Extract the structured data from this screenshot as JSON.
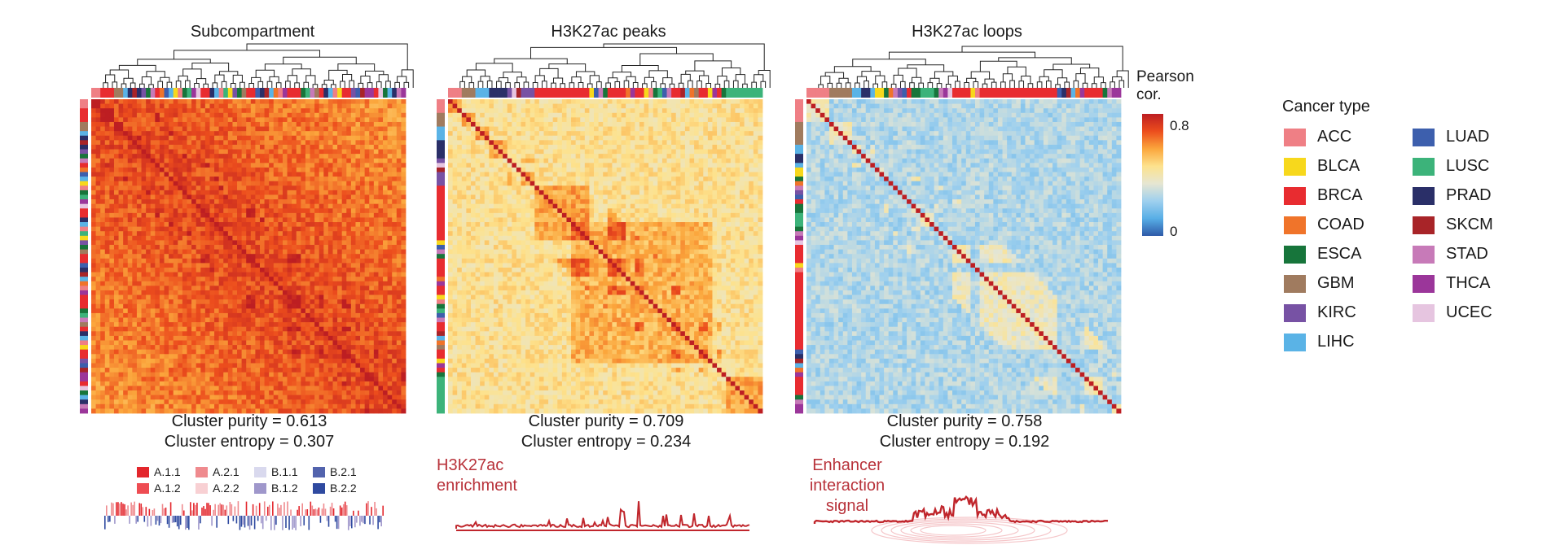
{
  "chart_data": [
    {
      "type": "heatmap",
      "title": "Subcompartment",
      "stats": [
        "Cluster purity = 0.613",
        "Cluster entropy = 0.307"
      ],
      "n_samples": 69,
      "mean_correlation": 0.78,
      "sample_cancer_types": [
        "ACC",
        "ACC",
        "BRCA",
        "BRCA",
        "BRCA",
        "GBM",
        "GBM",
        "LIHC",
        "PRAD",
        "SKCM",
        "PRAD",
        "KIRC",
        "ESCA",
        "STAD",
        "BRCA",
        "COAD",
        "LUAD",
        "LIHC",
        "BLCA",
        "ACC",
        "ESCA",
        "LUSC",
        "THCA",
        "UCEC",
        "BRCA",
        "BRCA",
        "PRAD",
        "LIHC",
        "ACC",
        "LUSC",
        "BLCA",
        "KIRC",
        "ESCA",
        "GBM",
        "BRCA",
        "BRCA",
        "LUAD",
        "PRAD",
        "SKCM",
        "LIHC",
        "COAD",
        "ACC",
        "THCA",
        "BRCA",
        "BRCA",
        "BRCA",
        "ESCA",
        "LUSC",
        "STAD",
        "GBM",
        "BRCA",
        "PRAD",
        "LIHC",
        "ACC",
        "BLCA",
        "BRCA",
        "BRCA",
        "KIRC",
        "LUAD",
        "SKCM",
        "THCA",
        "THCA",
        "BRCA",
        "UCEC",
        "ESCA",
        "LIHC",
        "PRAD",
        "STAD",
        "THCA"
      ],
      "track_legend_labels": [
        "A.1.1",
        "A.2.1",
        "B.1.1",
        "B.2.1",
        "A.1.2",
        "A.2.2",
        "B.1.2",
        "B.2.2"
      ],
      "track_legend_colors": [
        "#e3262c",
        "#ef8a8e",
        "#d9d9ee",
        "#5263ad",
        "#ee4c52",
        "#f8d0d3",
        "#9f97cb",
        "#2f4aa0"
      ]
    },
    {
      "type": "heatmap",
      "title": "H3K27ac peaks",
      "stats": [
        "Cluster purity = 0.709",
        "Cluster entropy = 0.234"
      ],
      "n_samples": 69,
      "mean_correlation": 0.56,
      "sample_cancer_types": [
        "ACC",
        "ACC",
        "ACC",
        "GBM",
        "GBM",
        "GBM",
        "LIHC",
        "LIHC",
        "LIHC",
        "PRAD",
        "PRAD",
        "PRAD",
        "PRAD",
        "KIRC",
        "UCEC",
        "SKCM",
        "KIRC",
        "KIRC",
        "KIRC",
        "BRCA",
        "BRCA",
        "BRCA",
        "BRCA",
        "BRCA",
        "BRCA",
        "BRCA",
        "BRCA",
        "BRCA",
        "BRCA",
        "BRCA",
        "BRCA",
        "BLCA",
        "LUAD",
        "STAD",
        "ESCA",
        "BRCA",
        "BRCA",
        "BRCA",
        "BRCA",
        "COAD",
        "THCA",
        "BRCA",
        "BRCA",
        "BLCA",
        "ACC",
        "ESCA",
        "LUSC",
        "LUAD",
        "STAD",
        "BRCA",
        "BRCA",
        "SKCM",
        "LIHC",
        "COAD",
        "GBM",
        "BRCA",
        "BRCA",
        "BLCA",
        "THCA",
        "BRCA",
        "ESCA",
        "LUSC",
        "LUSC",
        "LUSC",
        "LUSC",
        "LUSC",
        "LUSC",
        "LUSC",
        "LUSC"
      ],
      "trace_label": "H3K27ac\nenrichment"
    },
    {
      "type": "heatmap",
      "title": "H3K27ac loops",
      "stats": [
        "Cluster purity = 0.758",
        "Cluster entropy = 0.192"
      ],
      "n_samples": 69,
      "mean_correlation": 0.32,
      "sample_cancer_types": [
        "ACC",
        "ACC",
        "ACC",
        "ACC",
        "ACC",
        "GBM",
        "GBM",
        "GBM",
        "GBM",
        "GBM",
        "LIHC",
        "LIHC",
        "PRAD",
        "PRAD",
        "LIHC",
        "BLCA",
        "BLCA",
        "ESCA",
        "COAD",
        "STAD",
        "KIRC",
        "LUAD",
        "BRCA",
        "ESCA",
        "ESCA",
        "LUSC",
        "LUSC",
        "LUSC",
        "ESCA",
        "STAD",
        "THCA",
        "UCEC",
        "BRCA",
        "BRCA",
        "BRCA",
        "BRCA",
        "BLCA",
        "ACC",
        "BRCA",
        "BRCA",
        "BRCA",
        "BRCA",
        "BRCA",
        "BRCA",
        "BRCA",
        "BRCA",
        "BRCA",
        "BRCA",
        "BRCA",
        "BRCA",
        "BRCA",
        "BRCA",
        "BRCA",
        "BRCA",
        "BRCA",
        "LUAD",
        "PRAD",
        "SKCM",
        "LIHC",
        "COAD",
        "THCA",
        "BRCA",
        "BRCA",
        "BRCA",
        "BRCA",
        "ESCA",
        "STAD",
        "THCA",
        "THCA"
      ],
      "trace_label": "Enhancer\ninteraction\nsignal"
    }
  ],
  "colorbar": {
    "title": "Pearson\ncor.",
    "tick_labels": [
      "0.8",
      "0"
    ],
    "range": [
      0,
      0.8
    ],
    "stops": [
      "#2e5aa8",
      "#58aee6",
      "#9fd0ee",
      "#e6e6d2",
      "#fde28d",
      "#fba63c",
      "#ec4d1d",
      "#bd1e22"
    ]
  },
  "legend": {
    "title": "Cancer type",
    "types": [
      "ACC",
      "BLCA",
      "BRCA",
      "COAD",
      "ESCA",
      "GBM",
      "KIRC",
      "LIHC",
      "LUAD",
      "LUSC",
      "PRAD",
      "SKCM",
      "STAD",
      "THCA",
      "UCEC"
    ],
    "colors": {
      "ACC": "#ef7f85",
      "BLCA": "#f7d81c",
      "BRCA": "#e82c30",
      "COAD": "#f0742a",
      "ESCA": "#17753b",
      "GBM": "#a07b5f",
      "KIRC": "#7752a4",
      "LIHC": "#5ab3e6",
      "LUAD": "#3d5fad",
      "LUSC": "#3cb37a",
      "PRAD": "#2a2f68",
      "SKCM": "#a82428",
      "STAD": "#c77ab8",
      "THCA": "#9b369a",
      "UCEC": "#e6c5e0"
    }
  }
}
